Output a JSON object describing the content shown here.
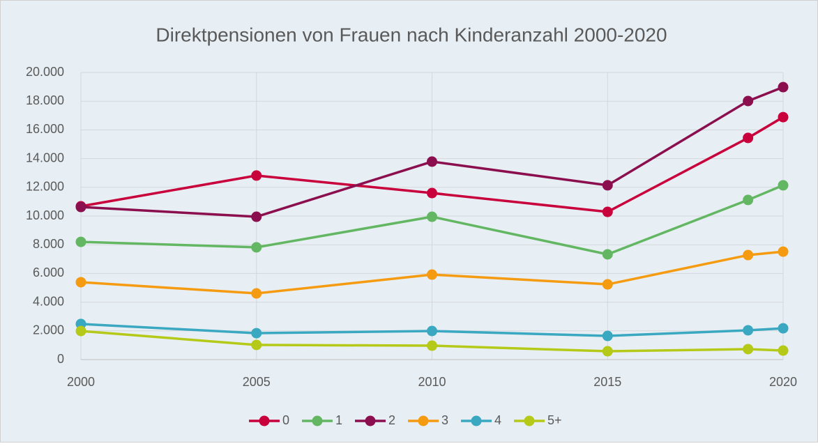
{
  "chart_data": {
    "type": "line",
    "title": "Direktpensionen von Frauen nach Kinderanzahl 2000-2020",
    "x": [
      2000,
      2005,
      2010,
      2015,
      2019,
      2020
    ],
    "xlim": [
      2000,
      2020
    ],
    "xticks": [
      2000,
      2005,
      2010,
      2015,
      2020
    ],
    "ylim": [
      0,
      20000
    ],
    "yticks": [
      0,
      {
        "value": 2000,
        "label": "2.000"
      },
      {
        "value": 4000,
        "label": "4.000"
      },
      {
        "value": 6000,
        "label": "6.000"
      },
      {
        "value": 8000,
        "label": "8.000"
      },
      {
        "value": 10000,
        "label": "10.000"
      },
      {
        "value": 12000,
        "label": "12.000"
      },
      {
        "value": 14000,
        "label": "14.000"
      },
      {
        "value": 16000,
        "label": "16.000"
      },
      {
        "value": 18000,
        "label": "18.000"
      },
      {
        "value": 20000,
        "label": "20.000"
      }
    ],
    "grid": true,
    "legend": "bottom",
    "series": [
      {
        "name": "0",
        "color": "#c8003c",
        "values": [
          10680,
          12820,
          11600,
          10290,
          15440,
          16890
        ]
      },
      {
        "name": "1",
        "color": "#63b763",
        "values": [
          8200,
          7820,
          9950,
          7330,
          11120,
          12140
        ]
      },
      {
        "name": "2",
        "color": "#8b0f4e",
        "values": [
          10630,
          9950,
          13790,
          12140,
          18010,
          18980
        ]
      },
      {
        "name": "3",
        "color": "#f59b12",
        "values": [
          5390,
          4610,
          5920,
          5240,
          7280,
          7520
        ]
      },
      {
        "name": "4",
        "color": "#3aa8c1",
        "values": [
          2480,
          1840,
          1990,
          1650,
          2040,
          2180
        ]
      },
      {
        "name": "5+",
        "color": "#b5c918",
        "values": [
          1990,
          1020,
          970,
          580,
          730,
          630
        ]
      }
    ]
  }
}
